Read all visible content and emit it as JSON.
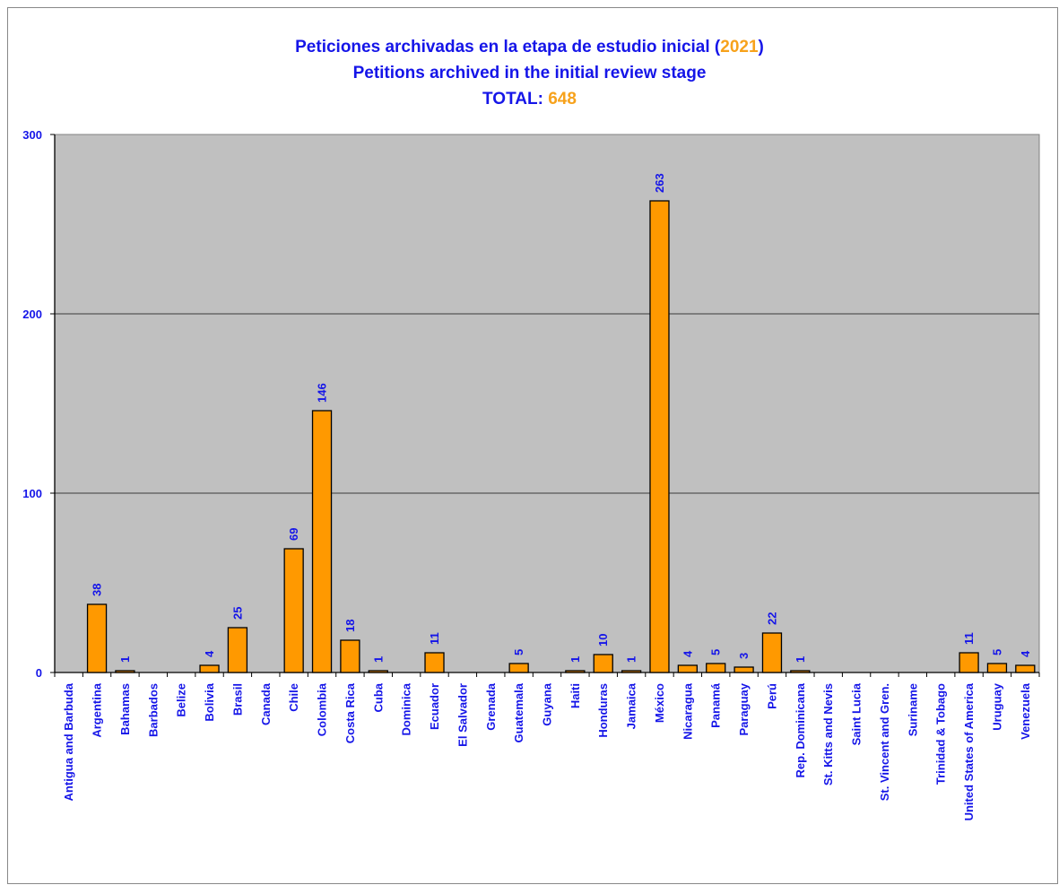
{
  "chart_data": {
    "type": "bar",
    "title_line1_prefix": "Peticiones archivadas en la etapa de estudio inicial (",
    "title_year": "2021",
    "title_line1_suffix": ")",
    "title_line2": "Petitions archived in the initial review stage",
    "total_label": "TOTAL:",
    "total_value": "648",
    "ylim": [
      0,
      300
    ],
    "yticks": [
      0,
      100,
      200,
      300
    ],
    "grid": true,
    "categories": [
      "Antigua and Barbuda",
      "Argentina",
      "Bahamas",
      "Barbados",
      "Belize",
      "Bolivia",
      "Brasil",
      "Canada",
      "Chile",
      "Colombia",
      "Costa Rica",
      "Cuba",
      "Dominica",
      "Ecuador",
      "El Salvador",
      "Grenada",
      "Guatemala",
      "Guyana",
      "Haiti",
      "Honduras",
      "Jamaica",
      "México",
      "Nicaragua",
      "Panamá",
      "Paraguay",
      "Perú",
      "Rep. Dominicana",
      "St. Kitts and Nevis",
      "Saint Lucia",
      "St. Vincent and Gren.",
      "Suriname",
      "Trinidad & Tobago",
      "United States of America",
      "Uruguay",
      "Venezuela"
    ],
    "values": [
      0,
      38,
      1,
      0,
      0,
      4,
      25,
      0,
      69,
      146,
      18,
      1,
      0,
      11,
      0,
      0,
      5,
      0,
      1,
      10,
      1,
      263,
      4,
      5,
      3,
      22,
      1,
      0,
      0,
      0,
      0,
      0,
      11,
      5,
      4
    ],
    "colors": {
      "bar": "#ff9900",
      "plot_bg": "#c0c0c0",
      "text": "#1515e8",
      "accent": "#f7a21b"
    }
  }
}
